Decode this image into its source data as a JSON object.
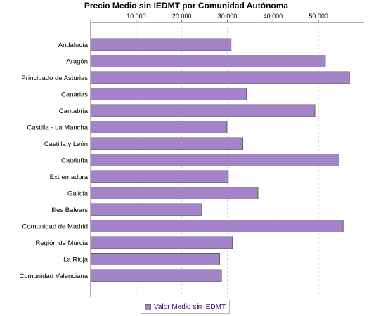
{
  "chart_data": {
    "type": "bar",
    "orientation": "horizontal",
    "title": "Precio Medio sin IEDMT por Comunidad Autónoma",
    "xlabel": "",
    "ylabel": "",
    "xlim": [
      0,
      60000
    ],
    "x_ticks": [
      10000,
      20000,
      30000,
      40000,
      50000
    ],
    "x_tick_labels": [
      "10.000",
      "20.000",
      "30.000",
      "40.000",
      "50.000"
    ],
    "tick_position": "top",
    "grid": "vertical dashed",
    "categories": [
      "Andalucía",
      "Aragón",
      "Principado de Asturias",
      "Canarias",
      "Cantabria",
      "Castilla - La Mancha",
      "Castilla y León",
      "Cataluña",
      "Extremadura",
      "Galicia",
      "Illes Balears",
      "Comunidad de Madrid",
      "Región de Murcia",
      "La Rioja",
      "Comunidad Valenciana"
    ],
    "series": [
      {
        "name": "Valor Medio sin IEDMT",
        "color": "#a384c8",
        "values": [
          30800,
          51500,
          56800,
          34200,
          49200,
          29900,
          33400,
          54500,
          30200,
          36700,
          24400,
          55400,
          31100,
          28300,
          28700
        ]
      }
    ],
    "legend_position": "bottom-center"
  }
}
